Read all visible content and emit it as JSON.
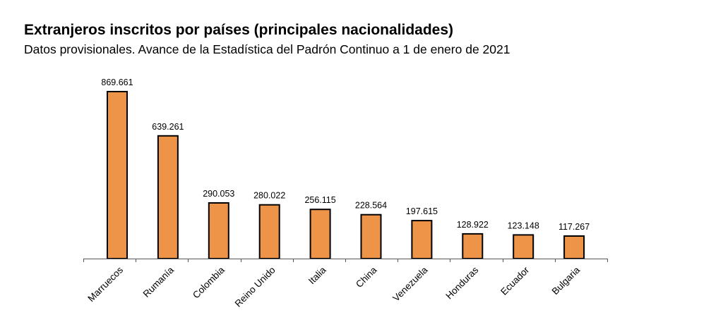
{
  "chart_data": {
    "type": "bar",
    "title": "Extranjeros inscritos por países (principales nacionalidades)",
    "subtitle": "Datos provisionales. Avance de la Estadística del Padrón Continuo a 1 de enero de 2021",
    "categories": [
      "Marruecos",
      "Rumanía",
      "Colombia",
      "Reino Unido",
      "Italia",
      "China",
      "Venezuela",
      "Honduras",
      "Ecuador",
      "Bulgaria"
    ],
    "values": [
      869661,
      639261,
      290053,
      280022,
      256115,
      228564,
      197615,
      128922,
      123148,
      117267
    ],
    "data_labels": [
      "869.661",
      "639.261",
      "290.053",
      "280.022",
      "256.115",
      "228.564",
      "197.615",
      "128.922",
      "123.148",
      "117.267"
    ],
    "xlabel": "",
    "ylabel": "",
    "ylim": [
      0,
      869661
    ],
    "bar_color": "#ed9448",
    "grid": false,
    "legend": "none"
  }
}
